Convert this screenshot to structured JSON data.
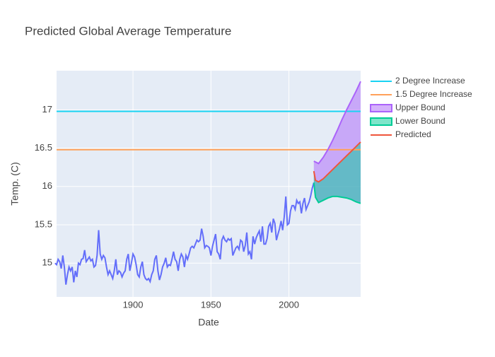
{
  "chart_data": {
    "type": "line",
    "title": "Predicted Global Average Temperature",
    "x_label": "Date",
    "y_label": "Temp. (C)",
    "xlim": [
      1851,
      2046
    ],
    "ylim": [
      14.56,
      17.51
    ],
    "xticks": [
      1900,
      1950,
      2000
    ],
    "yticks": [
      15,
      15.5,
      16,
      16.5,
      17
    ],
    "grid": true,
    "legend": "right",
    "series": [
      {
        "color": "#636efa",
        "x": [
          1850,
          1851,
          1852,
          1853,
          1854,
          1855,
          1856,
          1857,
          1858,
          1859,
          1860,
          1861,
          1862,
          1863,
          1864,
          1865,
          1866,
          1867,
          1868,
          1869,
          1870,
          1871,
          1872,
          1873,
          1874,
          1875,
          1876,
          1877,
          1878,
          1879,
          1880,
          1881,
          1882,
          1883,
          1884,
          1885,
          1886,
          1887,
          1888,
          1889,
          1890,
          1891,
          1892,
          1893,
          1894,
          1895,
          1896,
          1897,
          1898,
          1899,
          1900,
          1901,
          1902,
          1903,
          1904,
          1905,
          1906,
          1907,
          1908,
          1909,
          1910,
          1911,
          1912,
          1913,
          1914,
          1915,
          1916,
          1917,
          1918,
          1919,
          1920,
          1921,
          1922,
          1923,
          1924,
          1925,
          1926,
          1927,
          1928,
          1929,
          1930,
          1931,
          1932,
          1933,
          1934,
          1935,
          1936,
          1937,
          1938,
          1939,
          1940,
          1941,
          1942,
          1943,
          1944,
          1945,
          1946,
          1947,
          1948,
          1949,
          1950,
          1951,
          1952,
          1953,
          1954,
          1955,
          1956,
          1957,
          1958,
          1959,
          1960,
          1961,
          1962,
          1963,
          1964,
          1965,
          1966,
          1967,
          1968,
          1969,
          1970,
          1971,
          1972,
          1973,
          1974,
          1975,
          1976,
          1977,
          1978,
          1979,
          1980,
          1981,
          1982,
          1983,
          1984,
          1985,
          1986,
          1987,
          1988,
          1989,
          1990,
          1991,
          1992,
          1993,
          1994,
          1995,
          1996,
          1997,
          1998,
          1999,
          2000,
          2001,
          2002,
          2003,
          2004,
          2005,
          2006,
          2007,
          2008,
          2009,
          2010,
          2011,
          2012,
          2013,
          2014,
          2015,
          2016
        ],
        "values": [
          15.0,
          14.98,
          15.05,
          15.02,
          14.93,
          15.1,
          14.95,
          14.72,
          14.85,
          14.95,
          14.9,
          14.95,
          14.75,
          14.9,
          14.82,
          15.0,
          14.98,
          15.05,
          15.06,
          15.17,
          15.02,
          15.05,
          15.08,
          15.03,
          15.05,
          14.95,
          14.97,
          15.1,
          15.43,
          15.12,
          15.05,
          15.1,
          15.07,
          14.95,
          14.85,
          14.9,
          14.85,
          14.8,
          14.9,
          15.05,
          14.85,
          14.9,
          14.88,
          14.82,
          14.87,
          14.9,
          15.05,
          15.12,
          14.9,
          15.0,
          15.12,
          15.08,
          14.98,
          14.85,
          14.82,
          14.95,
          15.02,
          14.85,
          14.8,
          14.78,
          14.8,
          14.76,
          14.85,
          14.9,
          15.05,
          15.1,
          14.9,
          14.78,
          14.85,
          14.95,
          15.0,
          15.07,
          14.95,
          14.98,
          14.97,
          15.05,
          15.15,
          15.05,
          15.02,
          14.9,
          15.05,
          15.12,
          15.08,
          14.95,
          15.1,
          15.05,
          15.12,
          15.2,
          15.22,
          15.2,
          15.25,
          15.3,
          15.28,
          15.3,
          15.45,
          15.35,
          15.2,
          15.23,
          15.22,
          15.2,
          15.1,
          15.22,
          15.3,
          15.38,
          15.15,
          15.12,
          15.05,
          15.3,
          15.35,
          15.3,
          15.28,
          15.32,
          15.3,
          15.32,
          15.1,
          15.15,
          15.2,
          15.22,
          15.18,
          15.3,
          15.28,
          15.15,
          15.23,
          15.4,
          15.12,
          15.15,
          15.05,
          15.35,
          15.25,
          15.33,
          15.38,
          15.42,
          15.28,
          15.48,
          15.25,
          15.25,
          15.32,
          15.48,
          15.52,
          15.4,
          15.58,
          15.52,
          15.3,
          15.38,
          15.45,
          15.55,
          15.43,
          15.6,
          15.87,
          15.5,
          15.52,
          15.68,
          15.75,
          15.75,
          15.7,
          15.82,
          15.78,
          15.8,
          15.65,
          15.78,
          15.85,
          15.7,
          15.75,
          15.8,
          15.88,
          15.98,
          16.05
        ]
      },
      {
        "name": "2 Degree Increase",
        "color": "#19d3f3",
        "x": [
          1851,
          2046
        ],
        "values": [
          16.98,
          16.98
        ]
      },
      {
        "name": "1.5 Degree Increase",
        "color": "#ffa15a",
        "x": [
          1851,
          2046
        ],
        "values": [
          16.48,
          16.48
        ]
      },
      {
        "name": "Upper Bound",
        "color": "#ab63fa",
        "fill": true,
        "x": [
          2016,
          2017,
          2019,
          2022,
          2025,
          2028,
          2031,
          2034,
          2037,
          2040,
          2043,
          2046
        ],
        "values": [
          16.33,
          16.32,
          16.3,
          16.38,
          16.48,
          16.6,
          16.73,
          16.87,
          17.0,
          17.12,
          17.24,
          17.37
        ]
      },
      {
        "name": "Lower Bound",
        "color": "#00cc96",
        "fill": true,
        "x": [
          2016,
          2017,
          2019,
          2022,
          2025,
          2028,
          2031,
          2034,
          2037,
          2040,
          2043,
          2046
        ],
        "values": [
          16.05,
          15.86,
          15.79,
          15.82,
          15.85,
          15.87,
          15.87,
          15.86,
          15.85,
          15.83,
          15.8,
          15.78
        ]
      },
      {
        "name": "Predicted",
        "color": "#ef553b",
        "x": [
          2016,
          2017,
          2019,
          2022,
          2025,
          2028,
          2031,
          2034,
          2037,
          2040,
          2043,
          2046
        ],
        "values": [
          16.2,
          16.08,
          16.06,
          16.1,
          16.16,
          16.22,
          16.28,
          16.34,
          16.4,
          16.46,
          16.52,
          16.58
        ]
      }
    ]
  }
}
